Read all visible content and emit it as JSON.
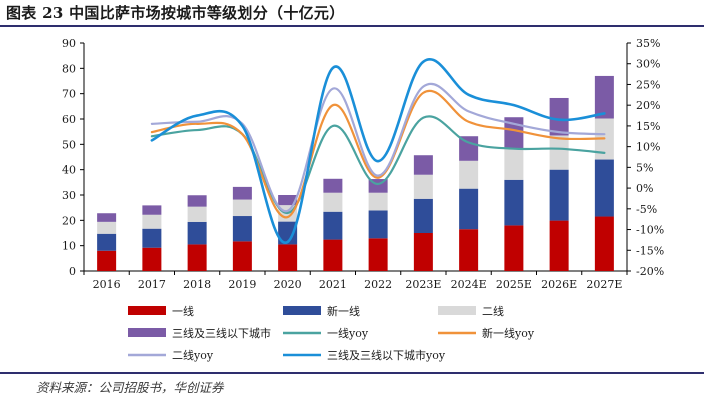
{
  "figure": {
    "title": "图表 23  中国比萨市场按城市等级划分（十亿元）",
    "source": "资料来源：公司招股书，华创证券"
  },
  "colors": {
    "tier1": "#c00000",
    "new_tier1": "#2f4d99",
    "tier2": "#d9d9d9",
    "tier3": "#7b5ba6",
    "tier1_yoy": "#4aa3a0",
    "new_tier1_yoy": "#f0923a",
    "tier2_yoy": "#a3a8d8",
    "tier3_yoy": "#1a8fd8",
    "axis": "#000000"
  },
  "chart_data": {
    "type": "bar",
    "stacked": true,
    "categories": [
      "2016",
      "2017",
      "2018",
      "2019",
      "2020",
      "2021",
      "2022",
      "2023E",
      "2024E",
      "2025E",
      "2026E",
      "2027E"
    ],
    "ylim": [
      0,
      90
    ],
    "y_ticks": [
      0,
      10,
      20,
      30,
      40,
      50,
      60,
      70,
      80,
      90
    ],
    "y2lim": [
      -20,
      35
    ],
    "y2_ticks": [
      "-20%",
      "-15%",
      "-10%",
      "-5%",
      "0%",
      "5%",
      "10%",
      "15%",
      "20%",
      "25%",
      "30%",
      "35%"
    ],
    "legend_position": "bottom",
    "series": [
      {
        "name": "一线",
        "kind": "bar",
        "color_key": "tier1",
        "values": [
          8,
          9.2,
          10.5,
          11.7,
          10.5,
          12.4,
          12.9,
          15,
          16.5,
          18,
          19.9,
          21.5
        ]
      },
      {
        "name": "新一线",
        "kind": "bar",
        "color_key": "new_tier1",
        "values": [
          6.7,
          7.5,
          8.9,
          10,
          9,
          11,
          11,
          13.5,
          16,
          18,
          20.1,
          22.5
        ]
      },
      {
        "name": "二线",
        "kind": "bar",
        "color_key": "tier2",
        "values": [
          4.7,
          5.5,
          6,
          6.5,
          6.5,
          7.5,
          7,
          9.5,
          11,
          12.5,
          13.5,
          16.2
        ]
      },
      {
        "name": "三线及三线以下城市",
        "kind": "bar",
        "color_key": "tier3",
        "values": [
          3.4,
          3.7,
          4.5,
          5,
          4,
          5.5,
          5.4,
          7.7,
          9.7,
          12.2,
          14.8,
          16.8
        ]
      },
      {
        "name": "一线yoy",
        "kind": "line",
        "axis": "right",
        "color_key": "tier1_yoy",
        "values": [
          null,
          12.5,
          14,
          13,
          -6,
          15,
          1,
          17,
          11,
          9.5,
          9.5,
          8.5
        ]
      },
      {
        "name": "新一线yoy",
        "kind": "line",
        "axis": "right",
        "color_key": "new_tier1_yoy",
        "values": [
          null,
          13.5,
          15.5,
          13,
          -7,
          20,
          2.5,
          23,
          16,
          14,
          12,
          12
        ]
      },
      {
        "name": "二线yoy",
        "kind": "line",
        "axis": "right",
        "color_key": "tier2_yoy",
        "values": [
          null,
          15.5,
          16,
          15.5,
          -5.5,
          24,
          3,
          24.5,
          18.5,
          15.5,
          13.5,
          13
        ]
      },
      {
        "name": "三线及三线以下城市yoy",
        "kind": "line",
        "axis": "right",
        "color_key": "tier3_yoy",
        "values": [
          null,
          11.5,
          17.5,
          15,
          -13,
          29,
          6.5,
          30.5,
          22.5,
          20,
          16.5,
          18
        ]
      }
    ]
  }
}
